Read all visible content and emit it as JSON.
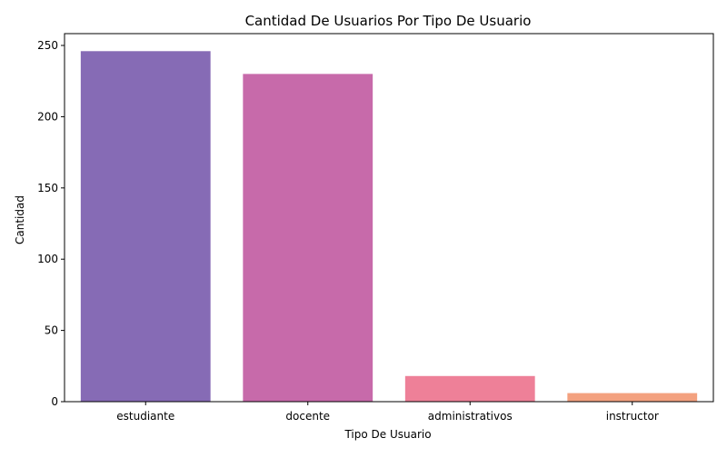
{
  "chart_data": {
    "type": "bar",
    "title": "Cantidad De Usuarios Por Tipo De Usuario",
    "xlabel": "Tipo De Usuario",
    "ylabel": "Cantidad",
    "categories": [
      "estudiante",
      "docente",
      "administrativos",
      "instructor"
    ],
    "values": [
      246,
      230,
      18,
      6
    ],
    "colors": [
      "#866bb5",
      "#c76aaa",
      "#ee8098",
      "#f3a17f"
    ],
    "ylim": [
      0,
      258.3
    ],
    "yticks": [
      0,
      50,
      100,
      150,
      200,
      250
    ],
    "grid": false,
    "legend": "none"
  }
}
